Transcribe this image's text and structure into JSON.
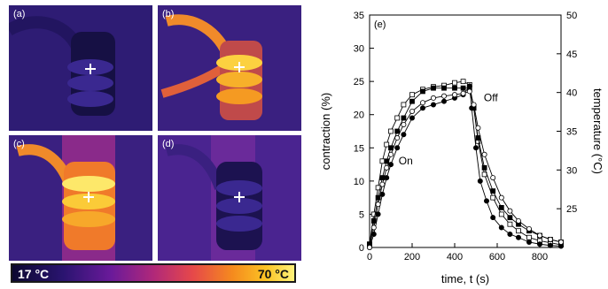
{
  "panels": [
    {
      "label": "(a)",
      "state": "cold"
    },
    {
      "label": "(b)",
      "state": "warm"
    },
    {
      "label": "(c)",
      "state": "hot"
    },
    {
      "label": "(d)",
      "state": "cooling"
    }
  ],
  "colorbar": {
    "min_label": "17 °C",
    "max_label": "70 °C",
    "colors": [
      "#0c0830",
      "#6a1a9a",
      "#e6484a",
      "#f58a1e",
      "#fff27a"
    ]
  },
  "chart_data": {
    "type": "line",
    "panel_label": "(e)",
    "xlabel": "time, t (s)",
    "ylabel": "contraction (%)",
    "ylabel_right": "temperature (°C)",
    "xlim": [
      0,
      900
    ],
    "ylim": [
      0,
      35
    ],
    "ylim_right": [
      20,
      50
    ],
    "xticks": [
      "0",
      "200",
      "400",
      "600",
      "800"
    ],
    "yticks": [
      "0",
      "5",
      "10",
      "15",
      "20",
      "25",
      "30",
      "35"
    ],
    "yticks_right": [
      "25",
      "30",
      "35",
      "40",
      "45",
      "50"
    ],
    "annotations": [
      {
        "text": "On",
        "x": 170,
        "y": 12.5
      },
      {
        "text": "Off",
        "x": 570,
        "y": 22
      }
    ],
    "grid": false,
    "series": [
      {
        "marker": "square-open",
        "x": [
          0,
          20,
          40,
          60,
          80,
          100,
          130,
          160,
          200,
          250,
          300,
          350,
          400,
          440,
          470,
          490,
          510,
          540,
          580,
          620,
          660,
          700,
          750,
          800,
          850,
          900
        ],
        "values": [
          0.5,
          5,
          9,
          13,
          15.5,
          17.5,
          19.5,
          21.5,
          23,
          23.8,
          24.2,
          24.4,
          24.8,
          25,
          24.5,
          21,
          16,
          11,
          7.5,
          5,
          3.5,
          2.5,
          1.5,
          1,
          0.7,
          0.4
        ]
      },
      {
        "marker": "circle-filled",
        "x": [
          0,
          20,
          40,
          60,
          80,
          100,
          130,
          160,
          200,
          250,
          300,
          350,
          400,
          440,
          470,
          480,
          500,
          520,
          550,
          580,
          620,
          660,
          700,
          750,
          800,
          850,
          900
        ],
        "values": [
          0,
          2,
          5,
          8,
          10.5,
          12.5,
          15,
          17,
          19.5,
          21,
          21.5,
          22,
          22.5,
          23,
          24.3,
          21,
          15,
          10,
          7,
          4.5,
          3,
          2,
          1.5,
          0.8,
          0.5,
          0.3,
          0.2
        ]
      },
      {
        "marker": "square-filled",
        "x": [
          0,
          20,
          40,
          60,
          80,
          100,
          130,
          160,
          200,
          250,
          300,
          350,
          400,
          440,
          470,
          490,
          510,
          540,
          580,
          620,
          660,
          700,
          750,
          800,
          850,
          900
        ],
        "values": [
          0.5,
          4,
          7.5,
          10.5,
          13,
          15,
          17.5,
          19.5,
          22,
          23.5,
          24,
          24,
          24,
          24,
          24,
          21,
          16.5,
          12,
          8.5,
          6,
          4.5,
          3.5,
          2.5,
          1.8,
          1.2,
          0.8
        ]
      },
      {
        "marker": "circle-open",
        "x": [
          0,
          20,
          40,
          60,
          80,
          100,
          130,
          160,
          200,
          250,
          300,
          350,
          400,
          440,
          470,
          490,
          510,
          540,
          580,
          620,
          660,
          700,
          750,
          800,
          850,
          900
        ],
        "values": [
          0,
          3,
          6.5,
          9.5,
          12,
          14,
          16.5,
          18.5,
          20.5,
          21.8,
          22.5,
          22.8,
          23,
          23.2,
          23.5,
          21.5,
          18,
          14,
          10.5,
          7.5,
          5.5,
          4,
          2.8,
          1.8,
          1.2,
          0.8
        ]
      }
    ]
  }
}
